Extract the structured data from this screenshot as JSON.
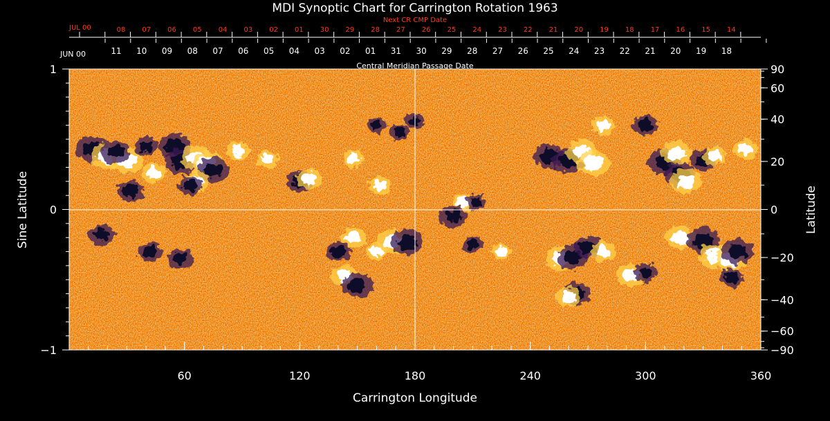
{
  "chart_data": {
    "type": "heatmap",
    "title": "MDI Synoptic Chart for Carrington Rotation 1963",
    "xlabel": "Carrington Longitude",
    "ylabel_left": "Sine Latitude",
    "ylabel_right": "Latitude",
    "xlim": [
      0,
      360
    ],
    "ylim": [
      -1,
      1
    ],
    "x_ticks": [
      60,
      120,
      180,
      240,
      300,
      360
    ],
    "y_ticks_left": [
      {
        "value": 1,
        "label": "1"
      },
      {
        "value": 0,
        "label": "0"
      },
      {
        "value": -1,
        "label": "−1"
      }
    ],
    "y_ticks_right": [
      {
        "lat": 90,
        "label": "90"
      },
      {
        "lat": 60,
        "label": "60"
      },
      {
        "lat": 40,
        "label": "40"
      },
      {
        "lat": 20,
        "label": "20"
      },
      {
        "lat": 0,
        "label": "0"
      },
      {
        "lat": -20,
        "label": "−20"
      },
      {
        "lat": -40,
        "label": "−40"
      },
      {
        "lat": -60,
        "label": "−60"
      },
      {
        "lat": -90,
        "label": "−90"
      }
    ],
    "gridlines": {
      "longitude": 180,
      "sine_latitude": 0
    },
    "next_cr_axis": {
      "title": "Next CR CMP Date",
      "month_label": "JUL 00",
      "day_labels": [
        "08",
        "07",
        "06",
        "05",
        "04",
        "03",
        "02",
        "01",
        "30",
        "29",
        "28",
        "27",
        "26",
        "25",
        "24",
        "23",
        "22",
        "21",
        "20",
        "19",
        "18",
        "17",
        "16",
        "15",
        "14"
      ]
    },
    "cmp_axis": {
      "title": "Central Meridian Passage Date",
      "month_label": "JUN 00",
      "day_labels": [
        "11",
        "10",
        "09",
        "08",
        "07",
        "06",
        "05",
        "04",
        "03",
        "02",
        "01",
        "31",
        "30",
        "29",
        "28",
        "27",
        "26",
        "25",
        "24",
        "23",
        "22",
        "21",
        "20",
        "19",
        "18"
      ]
    },
    "active_regions": [
      {
        "lon": 12,
        "sinlat": 0.43,
        "polarity": "negative",
        "strength": 1.0
      },
      {
        "lon": 20,
        "sinlat": 0.38,
        "polarity": "positive",
        "strength": 1.0
      },
      {
        "lon": 30,
        "sinlat": 0.35,
        "polarity": "positive",
        "strength": 1.0
      },
      {
        "lon": 24,
        "sinlat": 0.41,
        "polarity": "negative",
        "strength": 0.8
      },
      {
        "lon": 32,
        "sinlat": 0.13,
        "polarity": "negative",
        "strength": 0.7
      },
      {
        "lon": 40,
        "sinlat": 0.45,
        "polarity": "negative",
        "strength": 0.5
      },
      {
        "lon": 44,
        "sinlat": 0.26,
        "polarity": "positive",
        "strength": 0.6
      },
      {
        "lon": 55,
        "sinlat": 0.45,
        "polarity": "negative",
        "strength": 1.0
      },
      {
        "lon": 58,
        "sinlat": 0.34,
        "polarity": "negative",
        "strength": 1.0
      },
      {
        "lon": 66,
        "sinlat": 0.37,
        "polarity": "positive",
        "strength": 0.9
      },
      {
        "lon": 72,
        "sinlat": 0.32,
        "polarity": "positive",
        "strength": 1.0
      },
      {
        "lon": 75,
        "sinlat": 0.28,
        "polarity": "negative",
        "strength": 0.9
      },
      {
        "lon": 66,
        "sinlat": 0.2,
        "polarity": "positive",
        "strength": 0.6
      },
      {
        "lon": 63,
        "sinlat": 0.17,
        "polarity": "negative",
        "strength": 0.5
      },
      {
        "lon": 88,
        "sinlat": 0.42,
        "polarity": "positive",
        "strength": 0.5
      },
      {
        "lon": 103,
        "sinlat": 0.36,
        "polarity": "positive",
        "strength": 0.4
      },
      {
        "lon": 120,
        "sinlat": 0.2,
        "polarity": "negative",
        "strength": 0.7
      },
      {
        "lon": 125,
        "sinlat": 0.22,
        "polarity": "positive",
        "strength": 0.6
      },
      {
        "lon": 148,
        "sinlat": 0.36,
        "polarity": "positive",
        "strength": 0.4
      },
      {
        "lon": 162,
        "sinlat": 0.17,
        "polarity": "positive",
        "strength": 0.4
      },
      {
        "lon": 172,
        "sinlat": 0.55,
        "polarity": "negative",
        "strength": 0.3
      },
      {
        "lon": 180,
        "sinlat": 0.63,
        "polarity": "negative",
        "strength": 0.3
      },
      {
        "lon": 160,
        "sinlat": 0.6,
        "polarity": "negative",
        "strength": 0.3
      },
      {
        "lon": 205,
        "sinlat": 0.05,
        "polarity": "positive",
        "strength": 0.4
      },
      {
        "lon": 212,
        "sinlat": 0.05,
        "polarity": "negative",
        "strength": 0.3
      },
      {
        "lon": 250,
        "sinlat": 0.38,
        "polarity": "negative",
        "strength": 0.9
      },
      {
        "lon": 260,
        "sinlat": 0.35,
        "polarity": "negative",
        "strength": 1.0
      },
      {
        "lon": 267,
        "sinlat": 0.41,
        "polarity": "positive",
        "strength": 0.9
      },
      {
        "lon": 273,
        "sinlat": 0.33,
        "polarity": "positive",
        "strength": 1.0
      },
      {
        "lon": 278,
        "sinlat": 0.6,
        "polarity": "positive",
        "strength": 0.5
      },
      {
        "lon": 300,
        "sinlat": 0.6,
        "polarity": "negative",
        "strength": 0.6
      },
      {
        "lon": 310,
        "sinlat": 0.34,
        "polarity": "negative",
        "strength": 1.0
      },
      {
        "lon": 316,
        "sinlat": 0.4,
        "polarity": "positive",
        "strength": 0.9
      },
      {
        "lon": 318,
        "sinlat": 0.25,
        "polarity": "negative",
        "strength": 0.9
      },
      {
        "lon": 321,
        "sinlat": 0.2,
        "polarity": "positive",
        "strength": 0.9
      },
      {
        "lon": 330,
        "sinlat": 0.35,
        "polarity": "negative",
        "strength": 0.6
      },
      {
        "lon": 336,
        "sinlat": 0.38,
        "polarity": "positive",
        "strength": 0.5
      },
      {
        "lon": 352,
        "sinlat": 0.43,
        "polarity": "positive",
        "strength": 0.5
      },
      {
        "lon": 17,
        "sinlat": -0.18,
        "polarity": "negative",
        "strength": 0.6
      },
      {
        "lon": 42,
        "sinlat": -0.3,
        "polarity": "negative",
        "strength": 0.5
      },
      {
        "lon": 58,
        "sinlat": -0.35,
        "polarity": "negative",
        "strength": 0.6
      },
      {
        "lon": 148,
        "sinlat": -0.2,
        "polarity": "positive",
        "strength": 0.6
      },
      {
        "lon": 140,
        "sinlat": -0.3,
        "polarity": "negative",
        "strength": 0.6
      },
      {
        "lon": 143,
        "sinlat": -0.47,
        "polarity": "positive",
        "strength": 0.7
      },
      {
        "lon": 150,
        "sinlat": -0.54,
        "polarity": "negative",
        "strength": 0.9
      },
      {
        "lon": 168,
        "sinlat": -0.23,
        "polarity": "positive",
        "strength": 0.9
      },
      {
        "lon": 176,
        "sinlat": -0.23,
        "polarity": "negative",
        "strength": 1.0
      },
      {
        "lon": 160,
        "sinlat": -0.3,
        "polarity": "positive",
        "strength": 0.4
      },
      {
        "lon": 200,
        "sinlat": -0.05,
        "polarity": "negative",
        "strength": 0.7
      },
      {
        "lon": 256,
        "sinlat": -0.35,
        "polarity": "positive",
        "strength": 0.9
      },
      {
        "lon": 262,
        "sinlat": -0.34,
        "polarity": "negative",
        "strength": 0.9
      },
      {
        "lon": 270,
        "sinlat": -0.27,
        "polarity": "negative",
        "strength": 0.7
      },
      {
        "lon": 278,
        "sinlat": -0.3,
        "polarity": "positive",
        "strength": 0.6
      },
      {
        "lon": 264,
        "sinlat": -0.6,
        "polarity": "negative",
        "strength": 0.8
      },
      {
        "lon": 260,
        "sinlat": -0.62,
        "polarity": "positive",
        "strength": 0.6
      },
      {
        "lon": 292,
        "sinlat": -0.47,
        "polarity": "positive",
        "strength": 0.7
      },
      {
        "lon": 300,
        "sinlat": -0.45,
        "polarity": "negative",
        "strength": 0.5
      },
      {
        "lon": 318,
        "sinlat": -0.2,
        "polarity": "positive",
        "strength": 0.8
      },
      {
        "lon": 330,
        "sinlat": -0.22,
        "polarity": "negative",
        "strength": 1.0
      },
      {
        "lon": 336,
        "sinlat": -0.33,
        "polarity": "positive",
        "strength": 1.0
      },
      {
        "lon": 344,
        "sinlat": -0.36,
        "polarity": "positive",
        "strength": 0.9
      },
      {
        "lon": 348,
        "sinlat": -0.3,
        "polarity": "negative",
        "strength": 0.9
      },
      {
        "lon": 345,
        "sinlat": -0.49,
        "polarity": "negative",
        "strength": 0.5
      },
      {
        "lon": 210,
        "sinlat": -0.25,
        "polarity": "negative",
        "strength": 0.3
      },
      {
        "lon": 225,
        "sinlat": -0.3,
        "polarity": "positive",
        "strength": 0.3
      }
    ]
  }
}
